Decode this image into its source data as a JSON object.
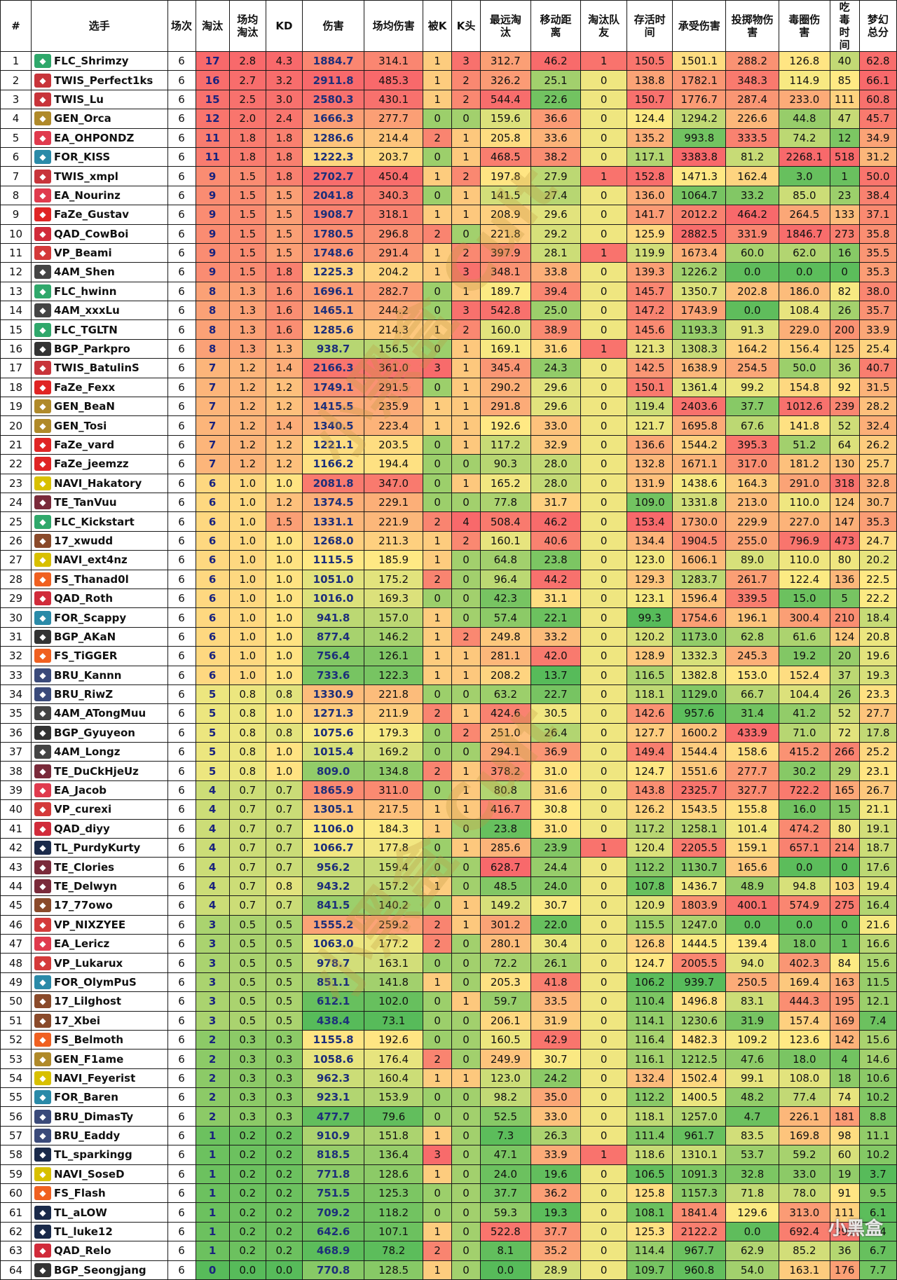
{
  "watermark": "小黑盒 Cult",
  "corner_watermark": "小黑盒",
  "columns": [
    "#",
    "选手",
    "场次",
    "淘汰",
    "场均淘汰",
    "KD",
    "伤害",
    "场均伤害",
    "被K",
    "K头",
    "最远淘汰",
    "移动距离",
    "淘汰队友",
    "存活时间",
    "承受伤害",
    "投掷物伤害",
    "毒圈伤害",
    "吃毒时间",
    "梦幻总分"
  ],
  "team_colors": {
    "FLC": "#2fa86b",
    "TWIS": "#c8343a",
    "GEN": "#b08a2a",
    "EA": "#e03a4d",
    "FOR": "#2a8aa8",
    "FaZe": "#e02424",
    "QAD": "#d12b3a",
    "VP": "#d43a3a",
    "4AM": "#444444",
    "BGP": "#333333",
    "NAVI": "#d8c000",
    "TE": "#7a2a3a",
    "17": "#8a4a2a",
    "FS": "#f06020",
    "BRU": "#3a4a7a",
    "TL": "#1a2a4a"
  },
  "scale": {
    "low": "#57bb5a",
    "mid": "#ffeb84",
    "high": "#f8696b",
    "bk_low": "#63be7b",
    "bk_mid": "#ffeb84",
    "bk_high": "#f8696b"
  },
  "rows": [
    [
      1,
      "FLC_Shrimzy",
      6,
      17,
      2.8,
      4.3,
      1884.7,
      314.1,
      1,
      3,
      312.7,
      46.2,
      1,
      150.5,
      1501.1,
      288.2,
      126.8,
      40,
      62.8
    ],
    [
      2,
      "TWIS_Perfect1ks",
      6,
      16,
      2.7,
      3.2,
      2911.8,
      485.3,
      1,
      2,
      326.2,
      25.1,
      0,
      138.8,
      1782.1,
      348.3,
      114.9,
      85,
      66.1
    ],
    [
      3,
      "TWIS_Lu",
      6,
      15,
      2.5,
      3.0,
      2580.3,
      430.1,
      1,
      2,
      544.4,
      22.6,
      0,
      150.7,
      1776.7,
      287.4,
      233.0,
      111,
      60.8
    ],
    [
      4,
      "GEN_Orca",
      6,
      12,
      2.0,
      2.4,
      1666.3,
      277.7,
      0,
      0,
      159.6,
      36.6,
      0,
      124.4,
      1294.2,
      226.6,
      44.8,
      47,
      45.7
    ],
    [
      5,
      "EA_OHPONDZ",
      6,
      11,
      1.8,
      1.8,
      1286.6,
      214.4,
      2,
      1,
      205.8,
      33.6,
      0,
      135.2,
      993.8,
      333.5,
      74.2,
      12,
      34.9
    ],
    [
      6,
      "FOR_KISS",
      6,
      11,
      1.8,
      1.8,
      1222.3,
      203.7,
      0,
      1,
      468.5,
      38.2,
      0,
      117.1,
      3383.8,
      81.2,
      2268.1,
      518,
      31.2
    ],
    [
      7,
      "TWIS_xmpl",
      6,
      9,
      1.5,
      1.8,
      2702.7,
      450.4,
      1,
      2,
      197.8,
      27.9,
      1,
      152.8,
      1471.3,
      162.4,
      3.0,
      1,
      50.0
    ],
    [
      8,
      "EA_Nourinz",
      6,
      9,
      1.5,
      1.5,
      2041.8,
      340.3,
      0,
      1,
      141.5,
      27.4,
      0,
      136.0,
      1064.7,
      33.2,
      85.0,
      23,
      38.4
    ],
    [
      9,
      "FaZe_Gustav",
      6,
      9,
      1.5,
      1.5,
      1908.7,
      318.1,
      1,
      1,
      208.9,
      29.6,
      0,
      141.7,
      2012.2,
      464.2,
      264.5,
      133,
      37.1
    ],
    [
      10,
      "QAD_CowBoi",
      6,
      9,
      1.5,
      1.5,
      1780.5,
      296.8,
      2,
      0,
      221.8,
      29.2,
      0,
      125.9,
      2882.5,
      331.9,
      1846.7,
      273,
      35.8
    ],
    [
      11,
      "VP_Beami",
      6,
      9,
      1.5,
      1.5,
      1748.6,
      291.4,
      1,
      2,
      397.9,
      28.1,
      1,
      119.9,
      1673.4,
      60.0,
      62.0,
      16,
      35.5
    ],
    [
      12,
      "4AM_Shen",
      6,
      9,
      1.5,
      1.8,
      1225.3,
      204.2,
      1,
      3,
      348.1,
      33.8,
      0,
      139.3,
      1226.2,
      0.0,
      0.0,
      0,
      35.3
    ],
    [
      13,
      "FLC_hwinn",
      6,
      8,
      1.3,
      1.6,
      1696.1,
      282.7,
      0,
      1,
      189.7,
      39.4,
      0,
      145.7,
      1350.7,
      202.8,
      186.0,
      82,
      38.0
    ],
    [
      14,
      "4AM_xxxLu",
      6,
      8,
      1.3,
      1.6,
      1465.1,
      244.2,
      0,
      3,
      542.8,
      25.0,
      0,
      147.2,
      1743.9,
      0.0,
      108.4,
      26,
      35.7
    ],
    [
      15,
      "FLC_TGLTN",
      6,
      8,
      1.3,
      1.6,
      1285.6,
      214.3,
      1,
      2,
      160.0,
      38.9,
      0,
      145.6,
      1193.3,
      91.3,
      229.0,
      200,
      33.9
    ],
    [
      16,
      "BGP_Parkpro",
      6,
      8,
      1.3,
      1.3,
      938.7,
      156.5,
      0,
      1,
      169.1,
      31.6,
      1,
      121.3,
      1308.3,
      164.2,
      156.4,
      125,
      25.4
    ],
    [
      17,
      "TWIS_BatulinS",
      6,
      7,
      1.2,
      1.4,
      2166.3,
      361.0,
      3,
      1,
      345.4,
      24.3,
      0,
      142.5,
      1638.9,
      254.5,
      50.0,
      36,
      40.7
    ],
    [
      18,
      "FaZe_Fexx",
      6,
      7,
      1.2,
      1.2,
      1749.1,
      291.5,
      0,
      1,
      290.2,
      29.6,
      0,
      150.1,
      1361.4,
      99.2,
      154.8,
      92,
      31.5
    ],
    [
      19,
      "GEN_BeaN",
      6,
      7,
      1.2,
      1.2,
      1415.5,
      235.9,
      1,
      1,
      291.8,
      29.6,
      0,
      119.4,
      2403.6,
      37.7,
      1012.6,
      239,
      28.2
    ],
    [
      20,
      "GEN_Tosi",
      6,
      7,
      1.2,
      1.4,
      1340.5,
      223.4,
      1,
      1,
      192.6,
      33.0,
      0,
      121.7,
      1695.8,
      67.6,
      141.8,
      52,
      32.4
    ],
    [
      21,
      "FaZe_vard",
      6,
      7,
      1.2,
      1.2,
      1221.1,
      203.5,
      0,
      1,
      117.2,
      32.9,
      0,
      136.6,
      1544.2,
      395.3,
      51.2,
      64,
      26.2
    ],
    [
      22,
      "FaZe_jeemzz",
      6,
      7,
      1.2,
      1.2,
      1166.2,
      194.4,
      0,
      0,
      90.3,
      28.0,
      0,
      132.8,
      1671.1,
      317.0,
      181.2,
      130,
      25.7
    ],
    [
      23,
      "NAVI_Hakatory",
      6,
      6,
      1.0,
      1.0,
      2081.8,
      347.0,
      0,
      1,
      165.2,
      28.0,
      0,
      131.9,
      1438.6,
      164.3,
      291.0,
      318,
      32.8
    ],
    [
      24,
      "TE_TanVuu",
      6,
      6,
      1.0,
      1.2,
      1374.5,
      229.1,
      0,
      0,
      77.8,
      31.7,
      0,
      109.0,
      1331.8,
      213.0,
      110.0,
      124,
      30.7
    ],
    [
      25,
      "FLC_Kickstart",
      6,
      6,
      1.0,
      1.5,
      1331.1,
      221.9,
      2,
      4,
      508.4,
      46.2,
      0,
      153.4,
      1730.0,
      229.9,
      227.0,
      147,
      35.3
    ],
    [
      26,
      "17_xwudd",
      6,
      6,
      1.0,
      1.0,
      1268.0,
      211.3,
      1,
      2,
      160.1,
      40.6,
      0,
      134.4,
      1904.5,
      255.0,
      796.9,
      473,
      24.7
    ],
    [
      27,
      "NAVI_ext4nz",
      6,
      6,
      1.0,
      1.0,
      1115.5,
      185.9,
      1,
      0,
      64.8,
      23.8,
      0,
      123.0,
      1606.1,
      89.0,
      110.0,
      80,
      20.2
    ],
    [
      28,
      "FS_Thanad0l",
      6,
      6,
      1.0,
      1.0,
      1051.0,
      175.2,
      2,
      0,
      96.4,
      44.2,
      0,
      129.3,
      1283.7,
      261.7,
      122.4,
      136,
      22.5
    ],
    [
      29,
      "QAD_Roth",
      6,
      6,
      1.0,
      1.0,
      1016.0,
      169.3,
      0,
      0,
      42.3,
      31.1,
      0,
      123.1,
      1596.4,
      339.5,
      15.0,
      5,
      22.2
    ],
    [
      30,
      "FOR_Scappy",
      6,
      6,
      1.0,
      1.0,
      941.8,
      157.0,
      1,
      0,
      57.4,
      22.1,
      0,
      99.3,
      1754.6,
      196.1,
      300.4,
      210,
      18.4
    ],
    [
      31,
      "BGP_AKaN",
      6,
      6,
      1.0,
      1.0,
      877.4,
      146.2,
      1,
      2,
      249.8,
      33.2,
      0,
      120.2,
      1173.0,
      62.8,
      61.6,
      124,
      20.8
    ],
    [
      32,
      "FS_TiGGER",
      6,
      6,
      1.0,
      1.0,
      756.4,
      126.1,
      1,
      1,
      281.1,
      42.0,
      0,
      128.9,
      1332.3,
      245.3,
      19.2,
      20,
      19.6
    ],
    [
      33,
      "BRU_Kannn",
      6,
      6,
      1.0,
      1.0,
      733.6,
      122.3,
      1,
      1,
      208.2,
      13.7,
      0,
      116.5,
      1382.8,
      153.0,
      152.4,
      37,
      19.3
    ],
    [
      34,
      "BRU_RiwZ",
      6,
      5,
      0.8,
      0.8,
      1330.9,
      221.8,
      0,
      0,
      63.2,
      22.7,
      0,
      118.1,
      1129.0,
      66.7,
      104.4,
      26,
      23.3
    ],
    [
      35,
      "4AM_ATongMuu",
      6,
      5,
      0.8,
      1.0,
      1271.3,
      211.9,
      2,
      1,
      424.6,
      30.5,
      0,
      142.6,
      957.6,
      31.4,
      41.2,
      52,
      27.7
    ],
    [
      36,
      "BGP_Gyuyeon",
      6,
      5,
      0.8,
      0.8,
      1075.6,
      179.3,
      0,
      2,
      251.0,
      26.4,
      0,
      127.7,
      1600.2,
      433.9,
      71.0,
      72,
      17.8
    ],
    [
      37,
      "4AM_Longz",
      6,
      5,
      0.8,
      1.0,
      1015.4,
      169.2,
      0,
      0,
      294.1,
      36.9,
      0,
      149.4,
      1544.4,
      158.6,
      415.2,
      266,
      25.2
    ],
    [
      38,
      "TE_DuCkHjeUz",
      6,
      5,
      0.8,
      1.0,
      809.0,
      134.8,
      2,
      1,
      378.2,
      31.0,
      0,
      124.7,
      1551.6,
      277.7,
      30.2,
      29,
      23.1
    ],
    [
      39,
      "EA_Jacob",
      6,
      4,
      0.7,
      0.7,
      1865.9,
      311.0,
      0,
      1,
      80.8,
      31.6,
      0,
      143.8,
      2325.7,
      327.7,
      722.2,
      165,
      26.7
    ],
    [
      40,
      "VP_curexi",
      6,
      4,
      0.7,
      0.7,
      1305.1,
      217.5,
      1,
      1,
      416.7,
      30.8,
      0,
      126.2,
      1543.5,
      155.8,
      16.0,
      15,
      21.1
    ],
    [
      41,
      "QAD_diyy",
      6,
      4,
      0.7,
      0.7,
      1106.0,
      184.3,
      1,
      0,
      23.8,
      31.0,
      0,
      117.2,
      1258.1,
      101.4,
      474.2,
      80,
      19.1
    ],
    [
      42,
      "TL_PurdyKurty",
      6,
      4,
      0.7,
      0.7,
      1066.7,
      177.8,
      0,
      1,
      285.6,
      23.9,
      1,
      120.4,
      2205.5,
      159.1,
      657.1,
      214,
      18.7
    ],
    [
      43,
      "TE_Clories",
      6,
      4,
      0.7,
      0.7,
      956.2,
      159.4,
      0,
      0,
      628.7,
      24.4,
      0,
      112.2,
      1130.7,
      165.6,
      0.0,
      0,
      17.6
    ],
    [
      44,
      "TE_Delwyn",
      6,
      4,
      0.7,
      0.8,
      943.2,
      157.2,
      1,
      0,
      48.5,
      24.0,
      0,
      107.8,
      1436.7,
      48.9,
      94.8,
      103,
      19.4
    ],
    [
      45,
      "17_77owo",
      6,
      4,
      0.7,
      0.7,
      841.5,
      140.2,
      0,
      1,
      149.2,
      30.7,
      0,
      120.9,
      1803.9,
      400.1,
      574.9,
      275,
      16.4
    ],
    [
      46,
      "VP_NIXZYEE",
      6,
      3,
      0.5,
      0.5,
      1555.2,
      259.2,
      2,
      1,
      301.2,
      22.0,
      0,
      115.5,
      1247.0,
      0.0,
      0.0,
      0,
      21.6
    ],
    [
      47,
      "EA_Lericz",
      6,
      3,
      0.5,
      0.5,
      1063.0,
      177.2,
      2,
      0,
      280.1,
      30.4,
      0,
      126.8,
      1444.5,
      139.4,
      18.0,
      1,
      16.6
    ],
    [
      48,
      "VP_Lukarux",
      6,
      3,
      0.5,
      0.5,
      978.7,
      163.1,
      0,
      0,
      72.2,
      26.1,
      0,
      124.7,
      2005.5,
      94.0,
      402.3,
      84,
      15.6
    ],
    [
      49,
      "FOR_OlymPuS",
      6,
      3,
      0.5,
      0.5,
      851.1,
      141.8,
      1,
      0,
      205.3,
      41.8,
      0,
      106.2,
      939.7,
      250.5,
      169.4,
      163,
      11.5
    ],
    [
      50,
      "17_Lilghost",
      6,
      3,
      0.5,
      0.5,
      612.1,
      102.0,
      0,
      1,
      59.7,
      33.5,
      0,
      110.4,
      1496.8,
      83.1,
      444.3,
      195,
      12.1
    ],
    [
      51,
      "17_Xbei",
      6,
      3,
      0.5,
      0.5,
      438.4,
      73.1,
      0,
      0,
      206.1,
      31.9,
      0,
      114.1,
      1230.6,
      31.9,
      157.4,
      169,
      7.4
    ],
    [
      52,
      "FS_Belmoth",
      6,
      2,
      0.3,
      0.3,
      1155.8,
      192.6,
      0,
      0,
      160.5,
      42.9,
      0,
      116.4,
      1482.3,
      109.2,
      123.6,
      142,
      15.6
    ],
    [
      53,
      "GEN_F1ame",
      6,
      2,
      0.3,
      0.3,
      1058.6,
      176.4,
      2,
      0,
      249.9,
      30.7,
      0,
      116.1,
      1212.5,
      47.6,
      18.0,
      4,
      14.6
    ],
    [
      54,
      "NAVI_Feyerist",
      6,
      2,
      0.3,
      0.3,
      962.3,
      160.4,
      1,
      1,
      123.0,
      24.2,
      0,
      132.4,
      1502.4,
      99.1,
      108.0,
      18,
      10.6
    ],
    [
      55,
      "FOR_Baren",
      6,
      2,
      0.3,
      0.3,
      923.1,
      153.9,
      0,
      0,
      98.2,
      35.0,
      0,
      112.2,
      1400.5,
      48.2,
      77.4,
      74,
      10.2
    ],
    [
      56,
      "BRU_DimasTy",
      6,
      2,
      0.3,
      0.3,
      477.7,
      79.6,
      0,
      0,
      52.5,
      33.0,
      0,
      118.1,
      1257.0,
      4.7,
      226.1,
      181,
      8.8
    ],
    [
      57,
      "BRU_Eaddy",
      6,
      1,
      0.2,
      0.2,
      910.9,
      151.8,
      1,
      0,
      7.3,
      26.3,
      0,
      111.4,
      961.7,
      83.5,
      169.8,
      98,
      11.1
    ],
    [
      58,
      "TL_sparkingg",
      6,
      1,
      0.2,
      0.2,
      818.5,
      136.4,
      3,
      0,
      47.1,
      33.9,
      1,
      118.6,
      1310.1,
      53.7,
      59.2,
      60,
      10.2
    ],
    [
      59,
      "NAVI_SoseD",
      6,
      1,
      0.2,
      0.2,
      771.8,
      128.6,
      1,
      0,
      24.0,
      19.6,
      0,
      106.5,
      1091.3,
      32.8,
      33.0,
      19,
      3.7
    ],
    [
      60,
      "FS_Flash",
      6,
      1,
      0.2,
      0.2,
      751.5,
      125.3,
      0,
      0,
      37.7,
      36.2,
      0,
      125.8,
      1157.3,
      71.8,
      78.0,
      91,
      9.5
    ],
    [
      61,
      "TL_aLOW",
      6,
      1,
      0.2,
      0.2,
      709.2,
      118.2,
      0,
      0,
      59.3,
      19.3,
      0,
      108.1,
      1841.4,
      129.6,
      313.0,
      111,
      6.1
    ],
    [
      62,
      "TL_luke12",
      6,
      1,
      0.2,
      0.2,
      642.6,
      107.1,
      1,
      0,
      522.8,
      37.7,
      0,
      125.3,
      2122.2,
      0.0,
      692.4,
      298,
      6.4
    ],
    [
      63,
      "QAD_Relo",
      6,
      1,
      0.2,
      0.2,
      468.9,
      78.2,
      2,
      0,
      8.1,
      35.2,
      0,
      114.4,
      967.7,
      62.9,
      85.2,
      36,
      6.7
    ],
    [
      64,
      "BGP_Seongjang",
      6,
      0,
      0.0,
      0.0,
      770.8,
      128.5,
      1,
      0,
      0.0,
      28.9,
      0,
      109.7,
      960.8,
      54.0,
      163.1,
      176,
      7.7
    ]
  ]
}
